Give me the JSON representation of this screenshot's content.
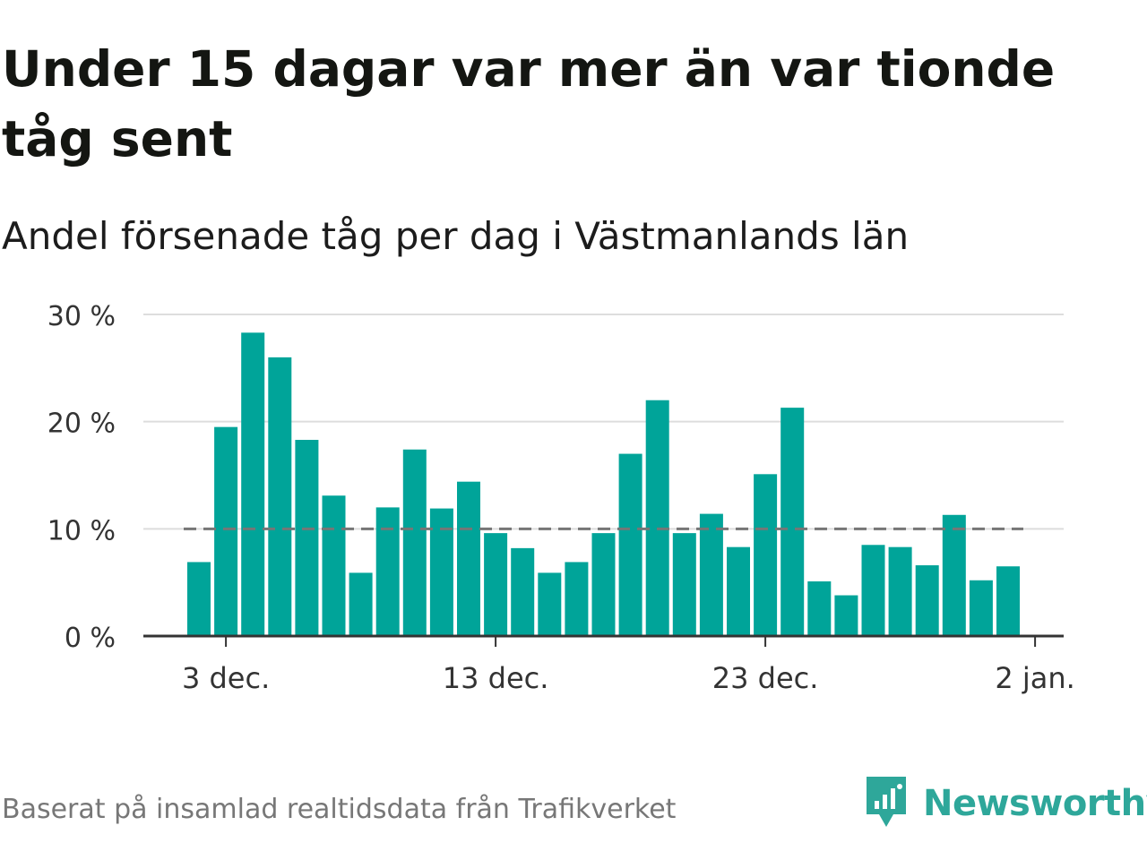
{
  "title": "Under 15 dagar var mer än var tionde tåg sent",
  "subtitle": "Andel försenade tåg per dag i Västmanlands län",
  "footer": {
    "source": "Baserat på insamlad realtidsdata från Trafikverket",
    "brand": "Newsworthy",
    "brand_icon": "newsworthy-logo-icon"
  },
  "colors": {
    "bar": "#00a499",
    "reference_line": "#767676",
    "grid": "#dddddd",
    "axis": "#333333",
    "brand": "#2ea79a"
  },
  "chart_data": {
    "type": "bar",
    "x": [
      "2 dec.",
      "3 dec.",
      "4 dec.",
      "5 dec.",
      "6 dec.",
      "7 dec.",
      "8 dec.",
      "9 dec.",
      "10 dec.",
      "11 dec.",
      "12 dec.",
      "13 dec.",
      "14 dec.",
      "15 dec.",
      "16 dec.",
      "17 dec.",
      "18 dec.",
      "19 dec.",
      "20 dec.",
      "21 dec.",
      "22 dec.",
      "23 dec.",
      "24 dec.",
      "25 dec.",
      "26 dec.",
      "27 dec.",
      "28 dec.",
      "29 dec.",
      "30 dec.",
      "31 dec.",
      "1 jan."
    ],
    "values": [
      6.9,
      19.5,
      28.3,
      26.0,
      18.3,
      13.1,
      5.9,
      12.0,
      17.4,
      11.9,
      14.4,
      9.6,
      8.2,
      5.9,
      6.9,
      9.6,
      17.0,
      22.0,
      9.6,
      11.4,
      8.3,
      15.1,
      21.3,
      5.1,
      3.8,
      8.5,
      8.3,
      6.6,
      11.3,
      5.2,
      6.5
    ],
    "x_ticks": [
      "3 dec.",
      "13 dec.",
      "23 dec.",
      "2 jan."
    ],
    "y_ticks": [
      0,
      10,
      20,
      30
    ],
    "y_tick_labels": [
      "0 %",
      "10 %",
      "20 %",
      "30 %"
    ],
    "ylim": [
      0,
      30
    ],
    "reference_line": 10,
    "grid": true,
    "xlabel": "",
    "ylabel": ""
  }
}
